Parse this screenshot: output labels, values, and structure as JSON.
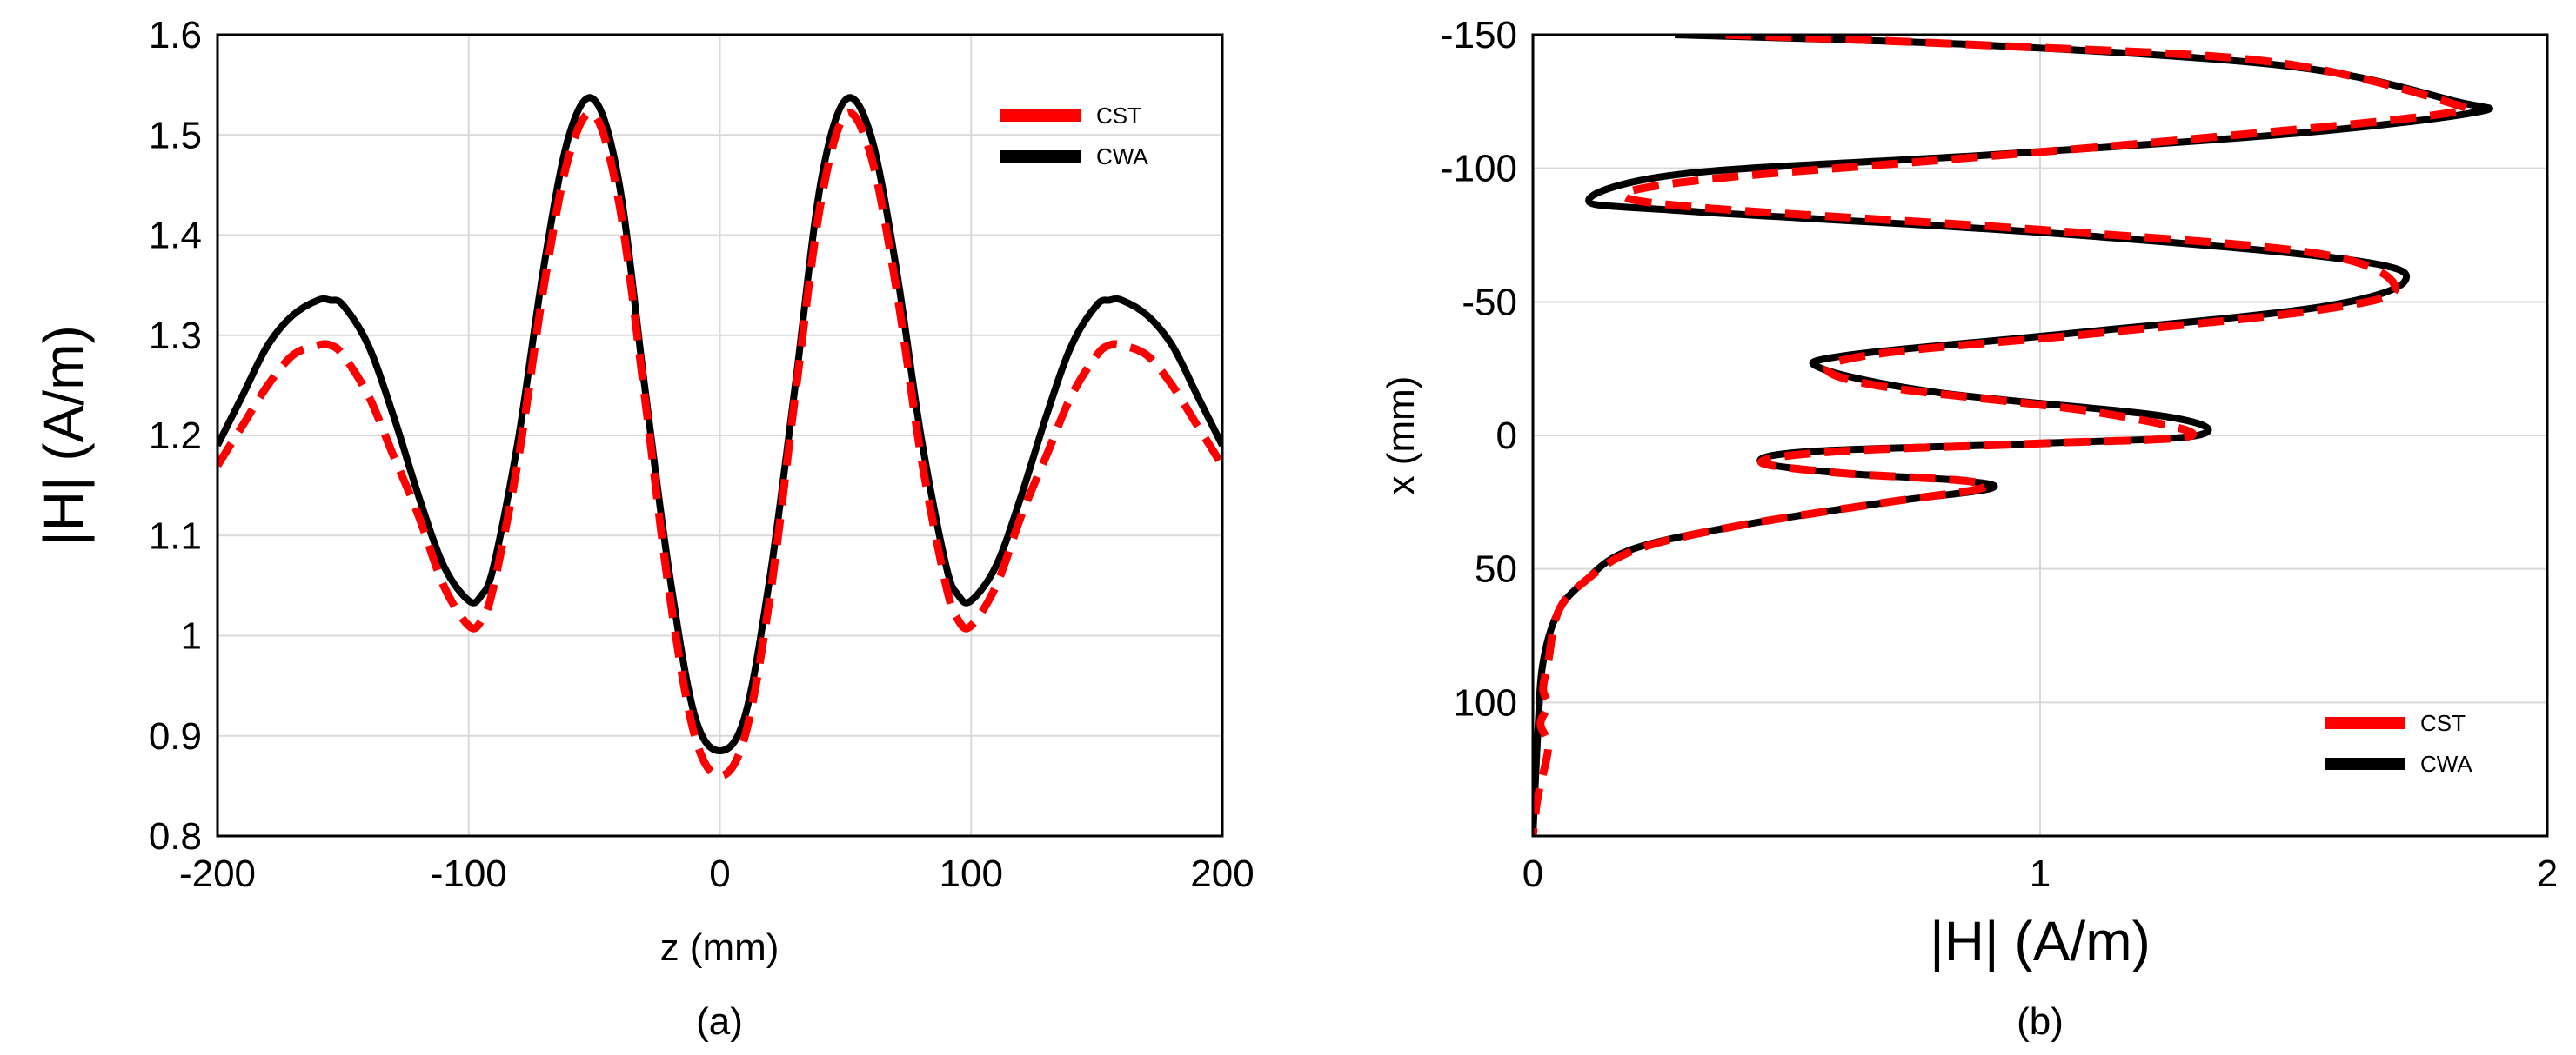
{
  "chart_data": [
    {
      "type": "line",
      "panel_label": "(a)",
      "xlabel": "z (mm)",
      "ylabel": "|H| (A/m)",
      "xlim": [
        -200,
        200
      ],
      "ylim": [
        0.8,
        1.6
      ],
      "xticks": [
        -200,
        -100,
        0,
        100,
        200
      ],
      "yticks": [
        0.8,
        0.9,
        1,
        1.1,
        1.2,
        1.3,
        1.4,
        1.5,
        1.6
      ],
      "ytick_labels": [
        "0.8",
        "0.9",
        "1",
        "1.1",
        "1.2",
        "1.3",
        "1.4",
        "1.5",
        "1.6"
      ],
      "grid": true,
      "legend": "top-right",
      "series": [
        {
          "name": "CST",
          "color": "#ff0000",
          "style": "dashed",
          "x": [
            -200,
            -190,
            -180,
            -170,
            -160,
            -155,
            -150,
            -140,
            -130,
            -120,
            -110,
            -100,
            -95,
            -90,
            -80,
            -70,
            -60,
            -50,
            -40,
            -30,
            -20,
            -10,
            0,
            10,
            20,
            30,
            40,
            50,
            60,
            70,
            80,
            90,
            95,
            100,
            110,
            120,
            130,
            140,
            150,
            155,
            160,
            170,
            180,
            190,
            200
          ],
          "y": [
            1.17,
            1.21,
            1.25,
            1.28,
            1.29,
            1.29,
            1.28,
            1.24,
            1.18,
            1.12,
            1.05,
            1.01,
            1.015,
            1.05,
            1.18,
            1.35,
            1.48,
            1.52,
            1.43,
            1.24,
            1.04,
            0.9,
            0.86,
            0.9,
            1.04,
            1.24,
            1.43,
            1.52,
            1.48,
            1.35,
            1.18,
            1.05,
            1.015,
            1.01,
            1.05,
            1.12,
            1.18,
            1.24,
            1.28,
            1.29,
            1.29,
            1.28,
            1.25,
            1.21,
            1.17
          ]
        },
        {
          "name": "CWA",
          "color": "#000000",
          "style": "solid",
          "x": [
            -200,
            -190,
            -180,
            -170,
            -160,
            -155,
            -150,
            -140,
            -130,
            -120,
            -110,
            -100,
            -95,
            -90,
            -80,
            -70,
            -60,
            -50,
            -40,
            -30,
            -20,
            -10,
            0,
            10,
            20,
            30,
            40,
            50,
            60,
            70,
            80,
            90,
            95,
            100,
            110,
            120,
            130,
            140,
            150,
            155,
            160,
            170,
            180,
            190,
            200
          ],
          "y": [
            1.19,
            1.24,
            1.29,
            1.32,
            1.335,
            1.335,
            1.33,
            1.29,
            1.22,
            1.14,
            1.07,
            1.035,
            1.04,
            1.07,
            1.2,
            1.37,
            1.5,
            1.535,
            1.45,
            1.25,
            1.06,
            0.92,
            0.885,
            0.92,
            1.06,
            1.25,
            1.45,
            1.535,
            1.5,
            1.37,
            1.2,
            1.07,
            1.04,
            1.035,
            1.07,
            1.14,
            1.22,
            1.29,
            1.33,
            1.335,
            1.335,
            1.32,
            1.29,
            1.24,
            1.19
          ]
        }
      ]
    },
    {
      "type": "line",
      "panel_label": "(b)",
      "xlabel": "|H| (A/m)",
      "ylabel": "x (mm)",
      "xlim": [
        0,
        2
      ],
      "ylim": [
        -150,
        150
      ],
      "y_axis_reversed": true,
      "xticks": [
        0,
        1,
        2
      ],
      "yticks": [
        -150,
        -100,
        -50,
        0,
        50,
        100
      ],
      "grid": true,
      "legend": "bottom-right",
      "series": [
        {
          "name": "CST",
          "color": "#ff0000",
          "style": "dashed",
          "x": [
            0.38,
            0.9,
            1.45,
            1.8,
            1.78,
            1.3,
            0.8,
            0.35,
            0.18,
            0.35,
            1.0,
            1.55,
            1.7,
            1.55,
            1.1,
            0.7,
            0.58,
            0.7,
            1.1,
            1.3,
            1.0,
            0.6,
            0.45,
            0.6,
            0.85,
            0.88,
            0.7,
            0.4,
            0.2,
            0.1,
            0.05,
            0.03,
            0.02,
            0.03,
            0.015,
            0.03,
            0.01,
            0.0
          ],
          "y": [
            -150,
            -146,
            -140,
            -125,
            -120,
            -111,
            -103,
            -96,
            -90,
            -85,
            -77,
            -68,
            -55,
            -47,
            -38,
            -31,
            -25,
            -18,
            -9,
            0,
            3,
            6,
            10,
            14,
            17,
            20,
            25,
            34,
            43,
            55,
            66,
            85,
            95,
            101,
            108,
            117,
            135,
            150
          ]
        },
        {
          "name": "CWA",
          "color": "#000000",
          "style": "solid",
          "x": [
            0.28,
            0.9,
            1.5,
            1.82,
            1.86,
            1.5,
            0.9,
            0.3,
            0.11,
            0.3,
            1.0,
            1.6,
            1.72,
            1.55,
            1.05,
            0.62,
            0.57,
            0.8,
            1.25,
            1.31,
            1.0,
            0.55,
            0.45,
            0.6,
            0.85,
            0.9,
            0.7,
            0.4,
            0.19,
            0.1,
            0.05,
            0.02,
            0.01,
            0.0
          ],
          "y": [
            -150,
            -146,
            -138,
            -125,
            -121,
            -113,
            -105,
            -98,
            -88,
            -84,
            -76,
            -66,
            -58,
            -48,
            -38,
            -30,
            -25,
            -16,
            -7,
            0,
            3,
            6,
            10,
            14,
            17,
            20,
            25,
            34,
            43,
            55,
            66,
            85,
            110,
            150
          ]
        }
      ]
    }
  ]
}
